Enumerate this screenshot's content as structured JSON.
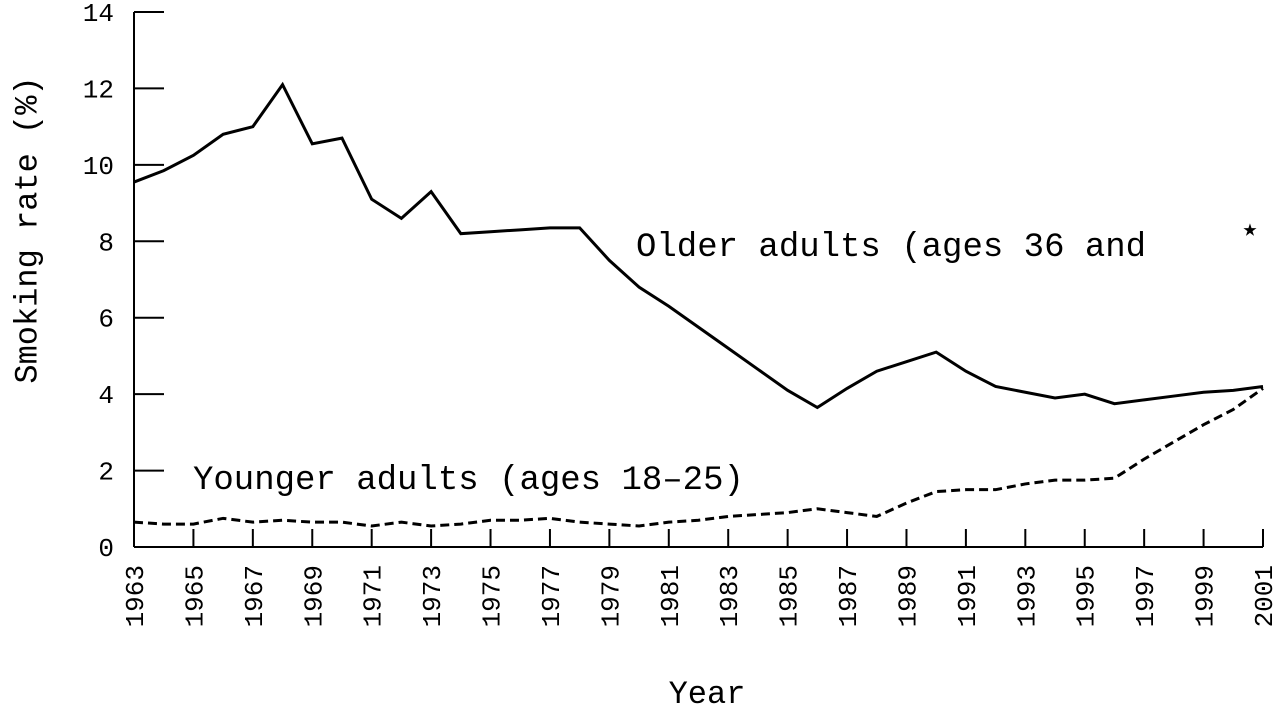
{
  "chart_data": {
    "type": "line",
    "y_label": "Smoking rate (%)",
    "x_label": "Year",
    "x": [
      1963,
      1964,
      1965,
      1966,
      1967,
      1968,
      1969,
      1970,
      1971,
      1972,
      1973,
      1974,
      1975,
      1976,
      1977,
      1978,
      1979,
      1980,
      1981,
      1982,
      1983,
      1984,
      1985,
      1986,
      1987,
      1988,
      1989,
      1990,
      1991,
      1992,
      1993,
      1994,
      1995,
      1996,
      1997,
      1998,
      1999,
      2000,
      2001
    ],
    "series": [
      {
        "name": "Older adults (ages 36 and",
        "color": "#000000",
        "dash": "solid",
        "values": [
          9.55,
          9.85,
          10.25,
          10.8,
          11.0,
          12.1,
          10.55,
          10.7,
          9.1,
          8.6,
          9.3,
          8.2,
          8.25,
          8.3,
          8.35,
          8.35,
          7.5,
          6.8,
          6.3,
          5.75,
          5.2,
          4.65,
          4.1,
          3.65,
          4.15,
          4.6,
          4.85,
          5.1,
          4.6,
          4.2,
          4.05,
          3.9,
          4.0,
          3.75,
          3.85,
          3.95,
          4.05,
          4.1,
          4.2
        ]
      },
      {
        "name": "Younger adults (ages 18–25)",
        "color": "#000000",
        "dash": "dashed",
        "values": [
          0.65,
          0.6,
          0.6,
          0.75,
          0.65,
          0.7,
          0.65,
          0.65,
          0.55,
          0.65,
          0.55,
          0.6,
          0.7,
          0.7,
          0.75,
          0.65,
          0.6,
          0.55,
          0.65,
          0.7,
          0.8,
          0.85,
          0.9,
          1.0,
          0.9,
          0.8,
          1.15,
          1.45,
          1.5,
          1.5,
          1.65,
          1.75,
          1.75,
          1.8,
          2.3,
          2.75,
          3.2,
          3.6,
          4.15
        ]
      }
    ],
    "annotations": [
      "★"
    ],
    "xlim": [
      1963,
      2001
    ],
    "xticks": [
      1963,
      1965,
      1967,
      1969,
      1971,
      1973,
      1975,
      1977,
      1979,
      1981,
      1983,
      1985,
      1987,
      1989,
      1991,
      1993,
      1995,
      1997,
      1999,
      2001
    ],
    "ylim": [
      0,
      14
    ],
    "yticks": [
      0,
      2,
      4,
      6,
      8,
      10,
      12,
      14
    ]
  }
}
